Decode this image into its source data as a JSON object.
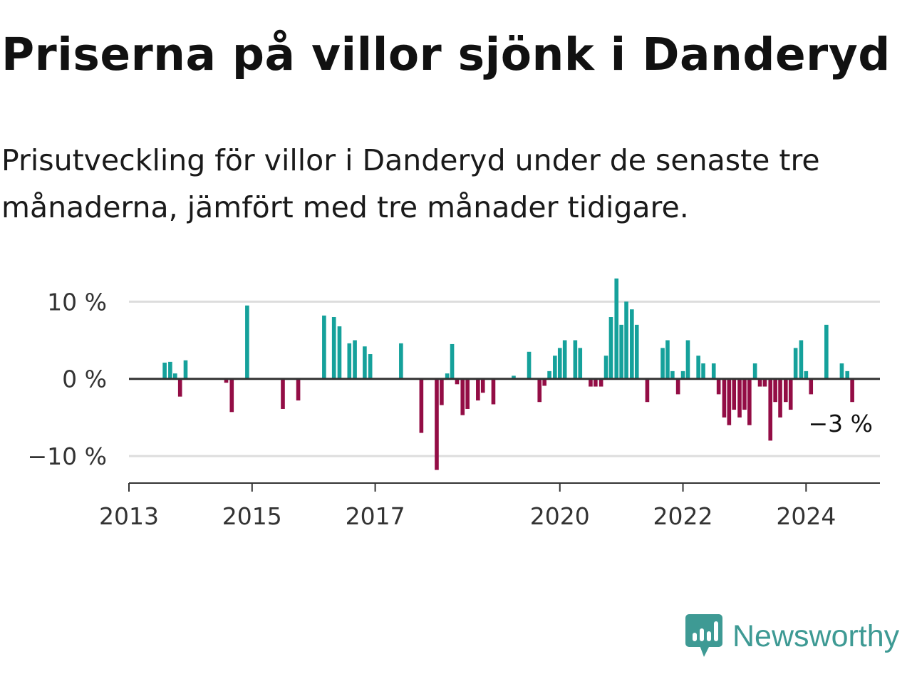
{
  "header": {
    "title": "Priserna på villor sjönk i Danderyd",
    "subtitle": "Prisutveckling för villor i Danderyd under de senaste tre månaderna, jämfört med tre månader tidigare."
  },
  "branding": {
    "name": "Newsworthy",
    "icon": "newsworthy-chart-bubble-icon"
  },
  "colors": {
    "positive": "#15a19b",
    "negative": "#930d45",
    "grid": "#dddddd",
    "axis": "#333333",
    "brand": "#3e9a94"
  },
  "chart_data": {
    "type": "bar",
    "title": "Priserna på villor sjönk i Danderyd",
    "xlabel": "",
    "ylabel": "",
    "ylim": [
      -13.5,
      14
    ],
    "yticks": [
      10,
      0,
      -10
    ],
    "ytick_labels": [
      "10 %",
      "0 %",
      "−10 %"
    ],
    "xlim": [
      2013.0,
      2025.2
    ],
    "xticks": [
      2013,
      2015,
      2017,
      2020,
      2022,
      2024
    ],
    "xtick_labels": [
      "2013",
      "2015",
      "2017",
      "2020",
      "2022",
      "2024"
    ],
    "end_label": "−3 %",
    "unit": "%",
    "series": [
      {
        "name": "Prisutveckling",
        "points": [
          {
            "x": 2013.58,
            "y": 2.1
          },
          {
            "x": 2013.67,
            "y": 2.2
          },
          {
            "x": 2013.75,
            "y": 0.7
          },
          {
            "x": 2013.83,
            "y": -2.3
          },
          {
            "x": 2013.92,
            "y": 2.4
          },
          {
            "x": 2014.58,
            "y": -0.5
          },
          {
            "x": 2014.67,
            "y": -4.3
          },
          {
            "x": 2014.92,
            "y": 9.5
          },
          {
            "x": 2015.5,
            "y": -3.9
          },
          {
            "x": 2015.75,
            "y": -2.8
          },
          {
            "x": 2016.17,
            "y": 8.2
          },
          {
            "x": 2016.33,
            "y": 8.0
          },
          {
            "x": 2016.42,
            "y": 6.8
          },
          {
            "x": 2016.58,
            "y": 4.6
          },
          {
            "x": 2016.67,
            "y": 5.0
          },
          {
            "x": 2016.83,
            "y": 4.2
          },
          {
            "x": 2016.92,
            "y": 3.2
          },
          {
            "x": 2017.42,
            "y": 4.6
          },
          {
            "x": 2017.75,
            "y": -7.0
          },
          {
            "x": 2018.0,
            "y": -11.8
          },
          {
            "x": 2018.08,
            "y": -3.4
          },
          {
            "x": 2018.17,
            "y": 0.7
          },
          {
            "x": 2018.25,
            "y": 4.5
          },
          {
            "x": 2018.33,
            "y": -0.7
          },
          {
            "x": 2018.42,
            "y": -4.7
          },
          {
            "x": 2018.5,
            "y": -3.9
          },
          {
            "x": 2018.67,
            "y": -2.8
          },
          {
            "x": 2018.75,
            "y": -1.8
          },
          {
            "x": 2018.92,
            "y": -3.3
          },
          {
            "x": 2019.25,
            "y": 0.4
          },
          {
            "x": 2019.5,
            "y": 3.5
          },
          {
            "x": 2019.67,
            "y": -3.0
          },
          {
            "x": 2019.75,
            "y": -0.9
          },
          {
            "x": 2019.83,
            "y": 1.0
          },
          {
            "x": 2019.92,
            "y": 3.0
          },
          {
            "x": 2020.0,
            "y": 4.0
          },
          {
            "x": 2020.08,
            "y": 5.0
          },
          {
            "x": 2020.25,
            "y": 5.0
          },
          {
            "x": 2020.33,
            "y": 4.0
          },
          {
            "x": 2020.5,
            "y": -1.0
          },
          {
            "x": 2020.58,
            "y": -1.0
          },
          {
            "x": 2020.67,
            "y": -1.0
          },
          {
            "x": 2020.75,
            "y": 3.0
          },
          {
            "x": 2020.83,
            "y": 8.0
          },
          {
            "x": 2020.92,
            "y": 13.0
          },
          {
            "x": 2021.0,
            "y": 7.0
          },
          {
            "x": 2021.08,
            "y": 10.0
          },
          {
            "x": 2021.17,
            "y": 9.0
          },
          {
            "x": 2021.25,
            "y": 7.0
          },
          {
            "x": 2021.42,
            "y": -3.0
          },
          {
            "x": 2021.67,
            "y": 4.0
          },
          {
            "x": 2021.75,
            "y": 5.0
          },
          {
            "x": 2021.83,
            "y": 1.0
          },
          {
            "x": 2021.92,
            "y": -2.0
          },
          {
            "x": 2022.0,
            "y": 1.0
          },
          {
            "x": 2022.08,
            "y": 5.0
          },
          {
            "x": 2022.25,
            "y": 3.0
          },
          {
            "x": 2022.33,
            "y": 2.0
          },
          {
            "x": 2022.5,
            "y": 2.0
          },
          {
            "x": 2022.58,
            "y": -2.0
          },
          {
            "x": 2022.67,
            "y": -5.0
          },
          {
            "x": 2022.75,
            "y": -6.0
          },
          {
            "x": 2022.83,
            "y": -4.0
          },
          {
            "x": 2022.92,
            "y": -5.0
          },
          {
            "x": 2023.0,
            "y": -4.0
          },
          {
            "x": 2023.08,
            "y": -6.0
          },
          {
            "x": 2023.17,
            "y": 2.0
          },
          {
            "x": 2023.25,
            "y": -1.0
          },
          {
            "x": 2023.33,
            "y": -1.0
          },
          {
            "x": 2023.42,
            "y": -8.0
          },
          {
            "x": 2023.5,
            "y": -3.0
          },
          {
            "x": 2023.58,
            "y": -5.0
          },
          {
            "x": 2023.67,
            "y": -3.0
          },
          {
            "x": 2023.75,
            "y": -4.0
          },
          {
            "x": 2023.83,
            "y": 4.0
          },
          {
            "x": 2023.92,
            "y": 5.0
          },
          {
            "x": 2024.0,
            "y": 1.0
          },
          {
            "x": 2024.08,
            "y": -2.0
          },
          {
            "x": 2024.33,
            "y": 7.0
          },
          {
            "x": 2024.58,
            "y": 2.0
          },
          {
            "x": 2024.67,
            "y": 1.0
          },
          {
            "x": 2024.75,
            "y": -3.0
          }
        ]
      }
    ]
  }
}
